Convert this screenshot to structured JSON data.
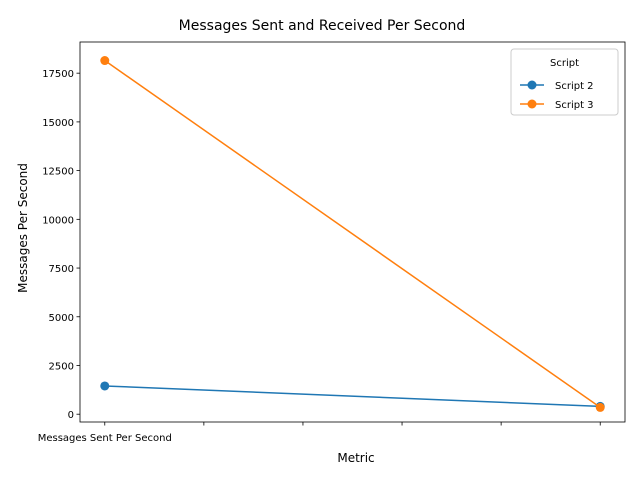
{
  "chart_data": {
    "type": "line",
    "title": "Messages Sent and Received Per Second",
    "xlabel": "Metric",
    "ylabel": "Messages Per Second",
    "x_positions": [
      0,
      1,
      2,
      3,
      4,
      5
    ],
    "x_tick_labels": [
      "Messages Sent Per Second",
      "",
      "",
      "",
      "",
      ""
    ],
    "xlim": [
      -0.25,
      5.25
    ],
    "ylim": [
      -400,
      19100
    ],
    "y_ticks": [
      0,
      2500,
      5000,
      7500,
      10000,
      12500,
      15000,
      17500
    ],
    "y_tick_labels": [
      "0",
      "2500",
      "5000",
      "7500",
      "10000",
      "12500",
      "15000",
      "17500"
    ],
    "grid": false,
    "legend": {
      "title": "Script",
      "placement": "top-right"
    },
    "series": [
      {
        "name": "Script 2",
        "color": "#1f77b4",
        "x": [
          0,
          5
        ],
        "values": [
          1450,
          400
        ]
      },
      {
        "name": "Script 3",
        "color": "#ff7f0e",
        "x": [
          0,
          5
        ],
        "values": [
          18150,
          350
        ]
      }
    ]
  }
}
